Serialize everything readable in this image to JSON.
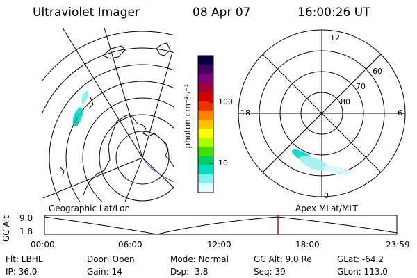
{
  "header": {
    "instrument": "Ultraviolet Imager",
    "date": "08 Apr 07",
    "time": "16:00:26 UT"
  },
  "colorbar": {
    "label": "photon cm⁻²s⁻¹",
    "ticks": [
      "100",
      "10"
    ],
    "colors": [
      "#000040",
      "#400060",
      "#800080",
      "#a0003c",
      "#d00000",
      "#f03000",
      "#ff8000",
      "#ffc000",
      "#ffff00",
      "#b0ff00",
      "#40e000",
      "#00d060",
      "#00e0c0",
      "#80f0f0",
      "#e0ffff"
    ]
  },
  "polar_plot": {
    "labels": {
      "top": "12",
      "left": "18",
      "right": "6",
      "bottom": "0",
      "r60": "60",
      "r70": "70",
      "r80": "80"
    }
  },
  "map_label": "Geographic Lat/Lon",
  "apex_label": "Apex MLat/MLT",
  "timeline": {
    "axis_label": "GC Alt",
    "y_ticks": [
      "9.0",
      "1.8"
    ],
    "x_ticks": [
      "00:00",
      "06:00",
      "12:00",
      "18:00",
      "23:59"
    ]
  },
  "footer": {
    "flt": "Flt: LBHL",
    "ip": "IP: 36.0",
    "door": "Door: Open",
    "gain": "Gain: 14",
    "mode": "Mode: Normal",
    "dsp": "Dsp:    -3.8",
    "gcalt": "GC Alt: 9.0 Re",
    "seq": "Seq: 39",
    "glat": "GLat: -64.2",
    "glon": "GLon: 113.0"
  }
}
